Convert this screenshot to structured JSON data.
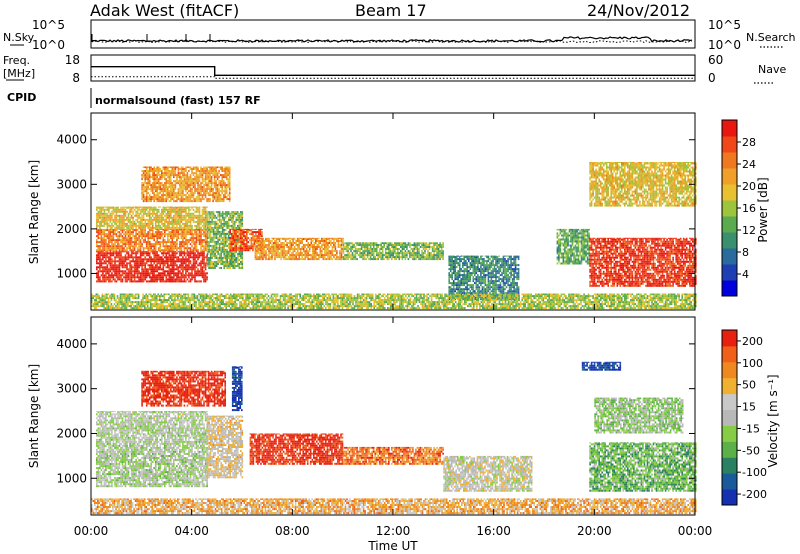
{
  "header": {
    "station": "Adak West (fitACF)",
    "beam": "Beam 17",
    "date": "24/Nov/2012"
  },
  "strip_labels": {
    "nsky": "N.Sky",
    "nsearch": "N.Search",
    "freq_1": "Freq.",
    "freq_2": "[MHz]",
    "nave": "Nave",
    "cpid": "CPID",
    "cpid_value": "normalsound (fast) 157 RF"
  },
  "chart_data": [
    {
      "type": "line",
      "panel": "noise",
      "left_ticks": [
        "10^5",
        "10^0"
      ],
      "right_ticks": [
        "10^5",
        "10^0"
      ],
      "series": [
        {
          "name": "N.Sky",
          "style": "solid"
        },
        {
          "name": "N.Search",
          "style": "dotted"
        }
      ]
    },
    {
      "type": "line",
      "panel": "frequency",
      "left_ticks": [
        "18",
        "8"
      ],
      "right_ticks": [
        "60",
        "0"
      ],
      "series": [
        {
          "name": "Freq. [MHz]",
          "style": "solid",
          "x": [
            "00:00",
            "04:55",
            "04:55",
            "24:00"
          ],
          "y": [
            14,
            14,
            8,
            8
          ]
        },
        {
          "name": "Nave",
          "style": "dotted",
          "x": [
            "00:00",
            "04:55",
            "04:55",
            "24:00"
          ],
          "y": [
            10,
            10,
            5,
            5
          ]
        }
      ]
    },
    {
      "type": "heatmap",
      "panel": "power",
      "ylabel": "Slant Range [km]",
      "yticks": [
        "1000",
        "2000",
        "3000",
        "4000"
      ],
      "ylim": [
        180,
        4600
      ],
      "xlim": [
        "00:00",
        "24:00"
      ],
      "colorbar": {
        "label": "Power [dB]",
        "ticks": [
          "4",
          "8",
          "12",
          "16",
          "20",
          "24",
          "28"
        ],
        "colors": [
          "#0000dd",
          "#1e3fb4",
          "#2a6a9c",
          "#3a8f6e",
          "#5aaa50",
          "#9cc43c",
          "#e8c030",
          "#f0a028",
          "#f07820",
          "#f04818",
          "#e81810"
        ]
      },
      "regions": [
        {
          "t0": 0.2,
          "t1": 4.6,
          "r0": 800,
          "r1": 1500,
          "level": 0.96
        },
        {
          "t0": 0.2,
          "t1": 4.6,
          "r0": 1500,
          "r1": 2000,
          "level": 0.75
        },
        {
          "t0": 0.2,
          "t1": 4.6,
          "r0": 2000,
          "r1": 2500,
          "level": 0.6
        },
        {
          "t0": 2.0,
          "t1": 5.5,
          "r0": 2600,
          "r1": 3400,
          "level": 0.7
        },
        {
          "t0": 4.6,
          "t1": 6.0,
          "r0": 1100,
          "r1": 2400,
          "level": 0.45
        },
        {
          "t0": 5.5,
          "t1": 6.8,
          "r0": 1500,
          "r1": 2000,
          "level": 0.85
        },
        {
          "t0": 6.5,
          "t1": 10.0,
          "r0": 1300,
          "r1": 1800,
          "level": 0.7
        },
        {
          "t0": 10.0,
          "t1": 14.0,
          "r0": 1300,
          "r1": 1700,
          "level": 0.45
        },
        {
          "t0": 14.2,
          "t1": 17.0,
          "r0": 400,
          "r1": 1400,
          "level": 0.3
        },
        {
          "t0": 18.5,
          "t1": 19.8,
          "r0": 1200,
          "r1": 2000,
          "level": 0.4
        },
        {
          "t0": 19.8,
          "t1": 24.0,
          "r0": 700,
          "r1": 1800,
          "level": 0.92
        },
        {
          "t0": 19.8,
          "t1": 24.0,
          "r0": 2500,
          "r1": 3500,
          "level": 0.6
        },
        {
          "t0": 0.0,
          "t1": 24.0,
          "r0": 200,
          "r1": 550,
          "level": 0.5
        }
      ]
    },
    {
      "type": "heatmap",
      "panel": "velocity",
      "ylabel": "Slant Range [km]",
      "yticks": [
        "1000",
        "2000",
        "3000",
        "4000"
      ],
      "ylim": [
        180,
        4600
      ],
      "xlabel": "Time UT",
      "xticks": [
        "00:00",
        "04:00",
        "08:00",
        "12:00",
        "16:00",
        "20:00",
        "00:00"
      ],
      "xlim": [
        "00:00",
        "24:00"
      ],
      "colorbar": {
        "label": "Velocity [m s⁻¹]",
        "ticks": [
          "200",
          "100",
          "50",
          "15",
          "-15",
          "-50",
          "-100",
          "-200"
        ],
        "colors": [
          "#1530b0",
          "#1a5a9a",
          "#2a8060",
          "#5cb048",
          "#86cc44",
          "#b8b8b8",
          "#c8c8c8",
          "#f0b030",
          "#f08820",
          "#f06018",
          "#e82010"
        ]
      },
      "regions": [
        {
          "t0": 0.2,
          "t1": 4.6,
          "r0": 800,
          "r1": 2000,
          "level": 0.48
        },
        {
          "t0": 0.2,
          "t1": 4.6,
          "r0": 2000,
          "r1": 2500,
          "level": 0.5
        },
        {
          "t0": 2.0,
          "t1": 5.3,
          "r0": 2600,
          "r1": 3400,
          "level": 0.97
        },
        {
          "t0": 4.6,
          "t1": 6.0,
          "r0": 1000,
          "r1": 2400,
          "level": 0.6
        },
        {
          "t0": 5.6,
          "t1": 6.0,
          "r0": 2500,
          "r1": 3500,
          "level": 0.05
        },
        {
          "t0": 6.3,
          "t1": 10.0,
          "r0": 1300,
          "r1": 2000,
          "level": 0.97
        },
        {
          "t0": 10.0,
          "t1": 14.0,
          "r0": 1300,
          "r1": 1700,
          "level": 0.82
        },
        {
          "t0": 14.0,
          "t1": 17.5,
          "r0": 700,
          "r1": 1500,
          "level": 0.55
        },
        {
          "t0": 19.5,
          "t1": 21.0,
          "r0": 3400,
          "r1": 3600,
          "level": 0.05
        },
        {
          "t0": 19.8,
          "t1": 24.0,
          "r0": 700,
          "r1": 1800,
          "level": 0.35
        },
        {
          "t0": 20.0,
          "t1": 23.5,
          "r0": 2000,
          "r1": 2800,
          "level": 0.42
        },
        {
          "t0": 0.0,
          "t1": 24.0,
          "r0": 200,
          "r1": 550,
          "level": 0.7
        }
      ]
    }
  ]
}
